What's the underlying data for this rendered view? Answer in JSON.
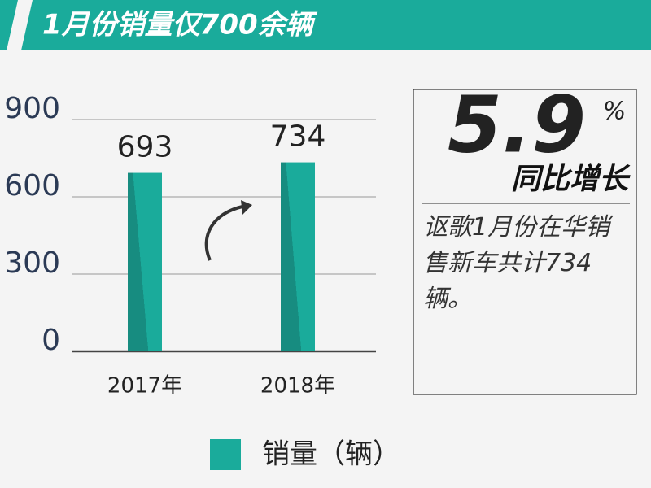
{
  "header": {
    "title": "1月份销量仅700余辆"
  },
  "chart_data": {
    "type": "bar",
    "categories": [
      "2017年",
      "2018年"
    ],
    "series": [
      {
        "name": "销量（辆）",
        "color": "#1aab9b",
        "shade": "#178c80",
        "values": [
          693,
          734
        ]
      }
    ],
    "ylim": [
      0,
      900
    ],
    "yticks": [
      0,
      300,
      600,
      900
    ],
    "grid": true
  },
  "callout": {
    "value": "5.9",
    "unit": "%",
    "label": "同比增长",
    "text": "讴歌1月份在华销售新车共计734辆。"
  }
}
